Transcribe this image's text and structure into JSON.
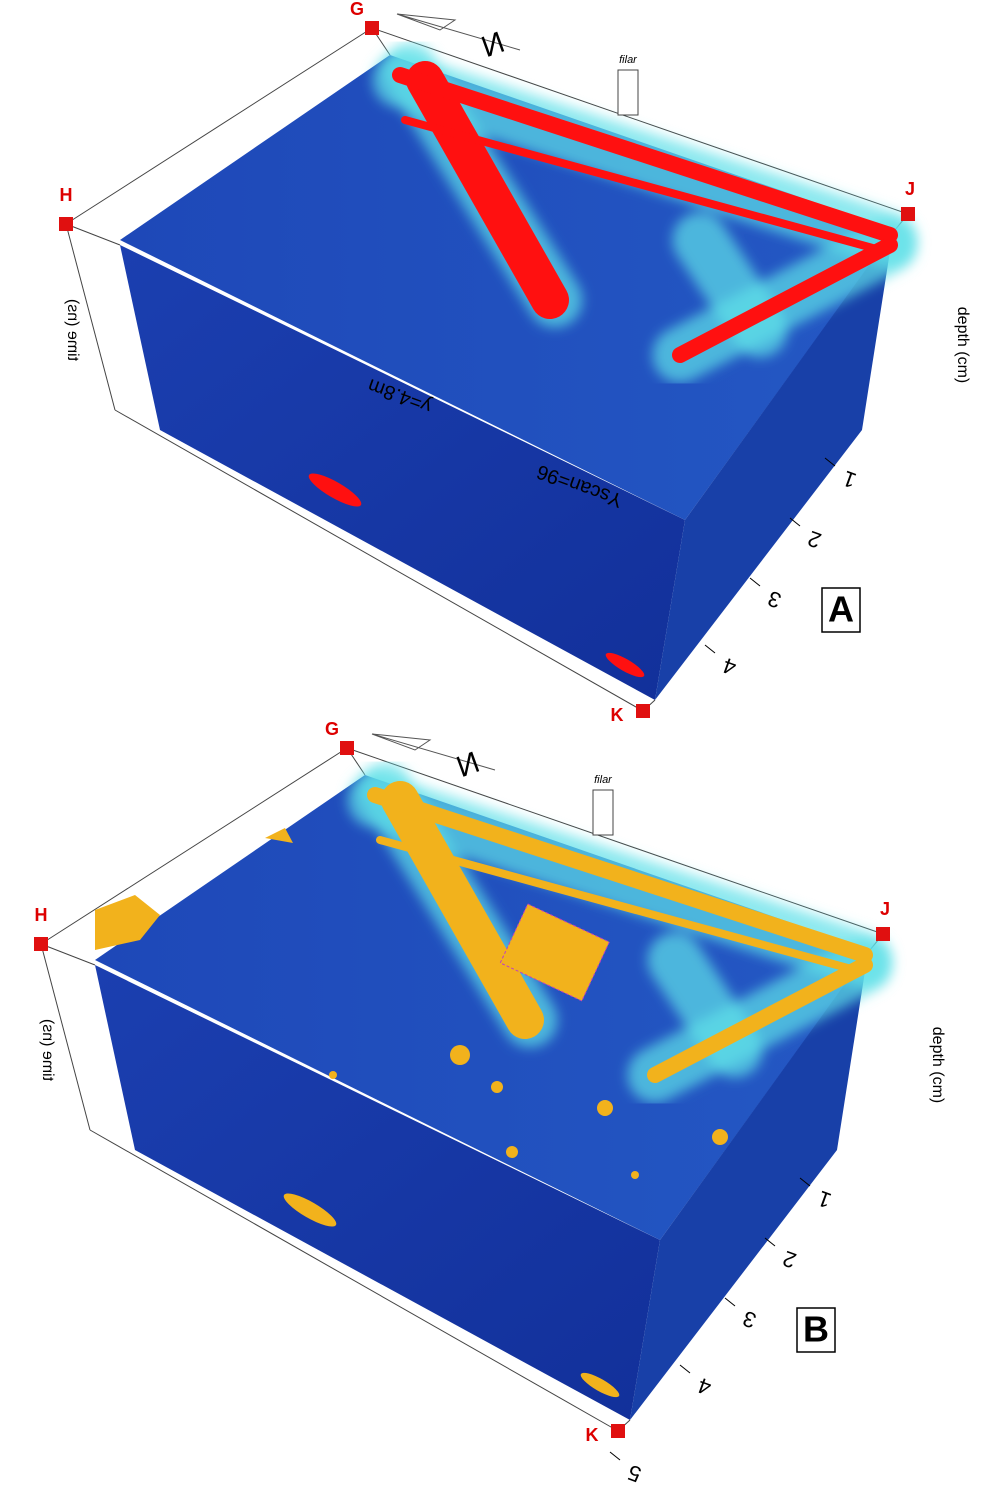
{
  "panels": [
    {
      "label": "A",
      "corners": [
        "G",
        "H",
        "J",
        "K"
      ],
      "north": "N",
      "marker": "filar",
      "time_axis": "time (ns)",
      "depth_axis": "depth (cm)",
      "slice_label": "Yscan=96",
      "slice_position": "y=4.8m",
      "x_ticks": [
        "1",
        "2",
        "3",
        "4"
      ]
    },
    {
      "label": "B",
      "corners": [
        "G",
        "H",
        "J",
        "K"
      ],
      "north": "N",
      "marker": "filar",
      "time_axis": "time (ns)",
      "depth_axis": "depth (cm)",
      "x_ticks": [
        "1",
        "2",
        "3",
        "4",
        "5"
      ]
    }
  ]
}
